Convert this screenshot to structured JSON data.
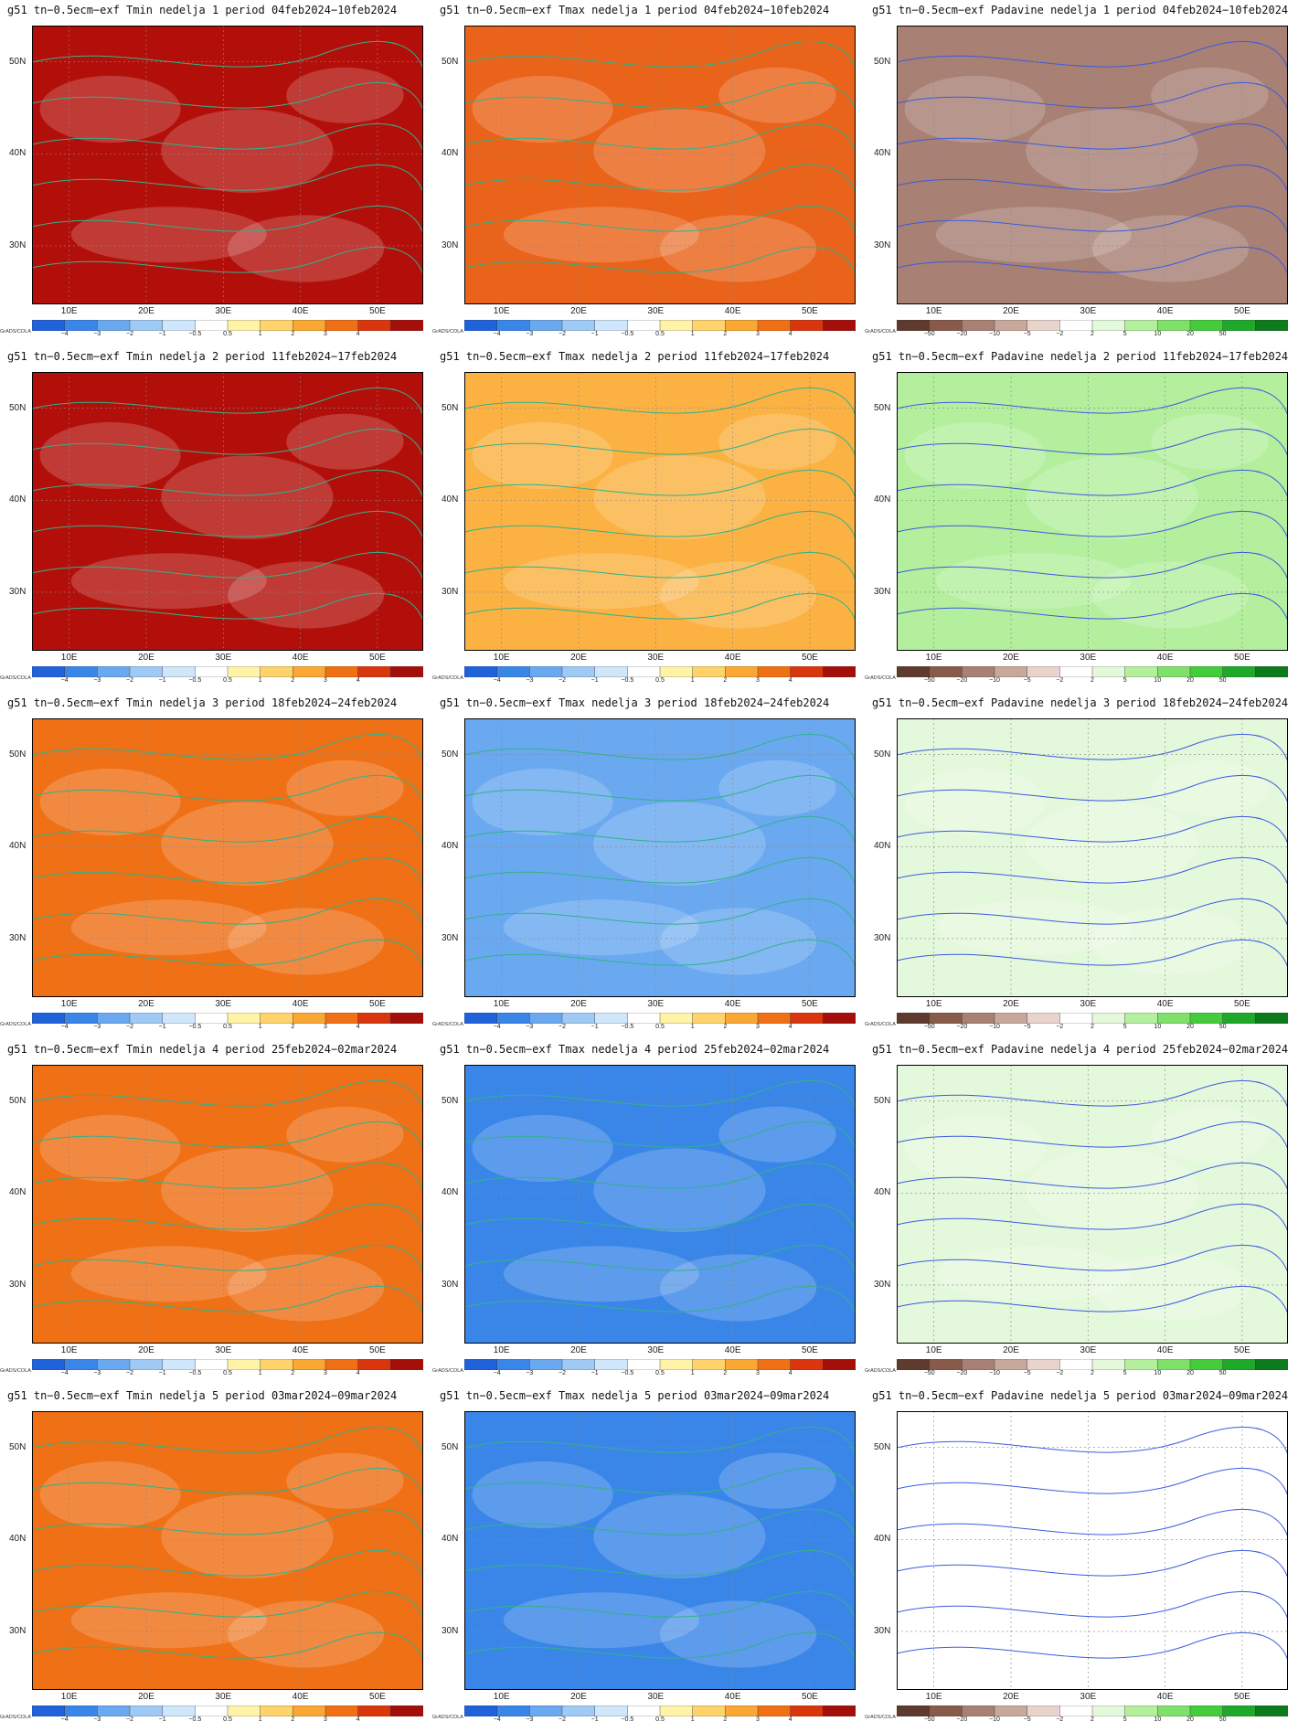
{
  "x_tick_labels": [
    "10E",
    "20E",
    "30E",
    "40E",
    "50E"
  ],
  "y_tick_labels": [
    "50N",
    "40N",
    "30N"
  ],
  "credit": "GrADS/COLA",
  "temp_colorbar": {
    "labels": [
      "−4",
      "−3",
      "−2",
      "−1",
      "−0.5",
      "0.5",
      "1",
      "2",
      "3",
      "4"
    ],
    "colors": [
      "#1f62d9",
      "#3a86e8",
      "#6aa9f0",
      "#9fcaf5",
      "#d0e6fb",
      "#ffffff",
      "#fff3a8",
      "#ffd36b",
      "#fba833",
      "#f07016",
      "#d9360d",
      "#a50f0a"
    ]
  },
  "precip_colorbar": {
    "labels": [
      "−50",
      "−20",
      "−10",
      "−5",
      "−2",
      "2",
      "5",
      "10",
      "20",
      "50"
    ],
    "colors": [
      "#5e3b2e",
      "#875a4a",
      "#a88074",
      "#c9a89c",
      "#e8d4cd",
      "#ffffff",
      "#e4f8dc",
      "#b4ef9e",
      "#7fe06a",
      "#45cc3c",
      "#1ea92a",
      "#0d7a1c"
    ]
  },
  "panels": [
    {
      "title": "g51 tn−0.5ecm−exf Tmin nedelja 1 period 04feb2024−10feb2024",
      "variable": "Tmin",
      "fill": "#b30f0a"
    },
    {
      "title": "g51 tn−0.5ecm−exf Tmax nedelja 1 period 04feb2024−10feb2024",
      "variable": "Tmax",
      "fill": "#e9631a"
    },
    {
      "title": "g51 tn−0.5ecm−exf Padavine nedelja 1 period 04feb2024−10feb2024",
      "variable": "Padavine",
      "fill": "#a88074"
    },
    {
      "title": "g51 tn−0.5ecm−exf Tmin nedelja 2 period 11feb2024−17feb2024",
      "variable": "Tmin",
      "fill": "#b30f0a"
    },
    {
      "title": "g51 tn−0.5ecm−exf Tmax nedelja 2 period 11feb2024−17feb2024",
      "variable": "Tmax",
      "fill": "#fbb243"
    },
    {
      "title": "g51 tn−0.5ecm−exf Padavine nedelja 2 period 11feb2024−17feb2024",
      "variable": "Padavine",
      "fill": "#b4ef9e"
    },
    {
      "title": "g51 tn−0.5ecm−exf Tmin nedelja 3 period 18feb2024−24feb2024",
      "variable": "Tmin",
      "fill": "#f07016"
    },
    {
      "title": "g51 tn−0.5ecm−exf Tmax nedelja 3 period 18feb2024−24feb2024",
      "variable": "Tmax",
      "fill": "#6aa9f0"
    },
    {
      "title": "g51 tn−0.5ecm−exf Padavine nedelja 3 period 18feb2024−24feb2024",
      "variable": "Padavine",
      "fill": "#e4f8dc"
    },
    {
      "title": "g51 tn−0.5ecm−exf Tmin nedelja 4 period 25feb2024−02mar2024",
      "variable": "Tmin",
      "fill": "#f07016"
    },
    {
      "title": "g51 tn−0.5ecm−exf Tmax nedelja 4 period 25feb2024−02mar2024",
      "variable": "Tmax",
      "fill": "#3a86e8"
    },
    {
      "title": "g51 tn−0.5ecm−exf Padavine nedelja 4 period 25feb2024−02mar2024",
      "variable": "Padavine",
      "fill": "#e4f8dc"
    },
    {
      "title": "g51 tn−0.5ecm−exf Tmin nedelja 5 period 03mar2024−09mar2024",
      "variable": "Tmin",
      "fill": "#f07016"
    },
    {
      "title": "g51 tn−0.5ecm−exf Tmax nedelja 5 period 03mar2024−09mar2024",
      "variable": "Tmax",
      "fill": "#3a86e8"
    },
    {
      "title": "g51 tn−0.5ecm−exf Padavine nedelja 5 period 03mar2024−09mar2024",
      "variable": "Padavine",
      "fill": "#ffffff"
    }
  ]
}
